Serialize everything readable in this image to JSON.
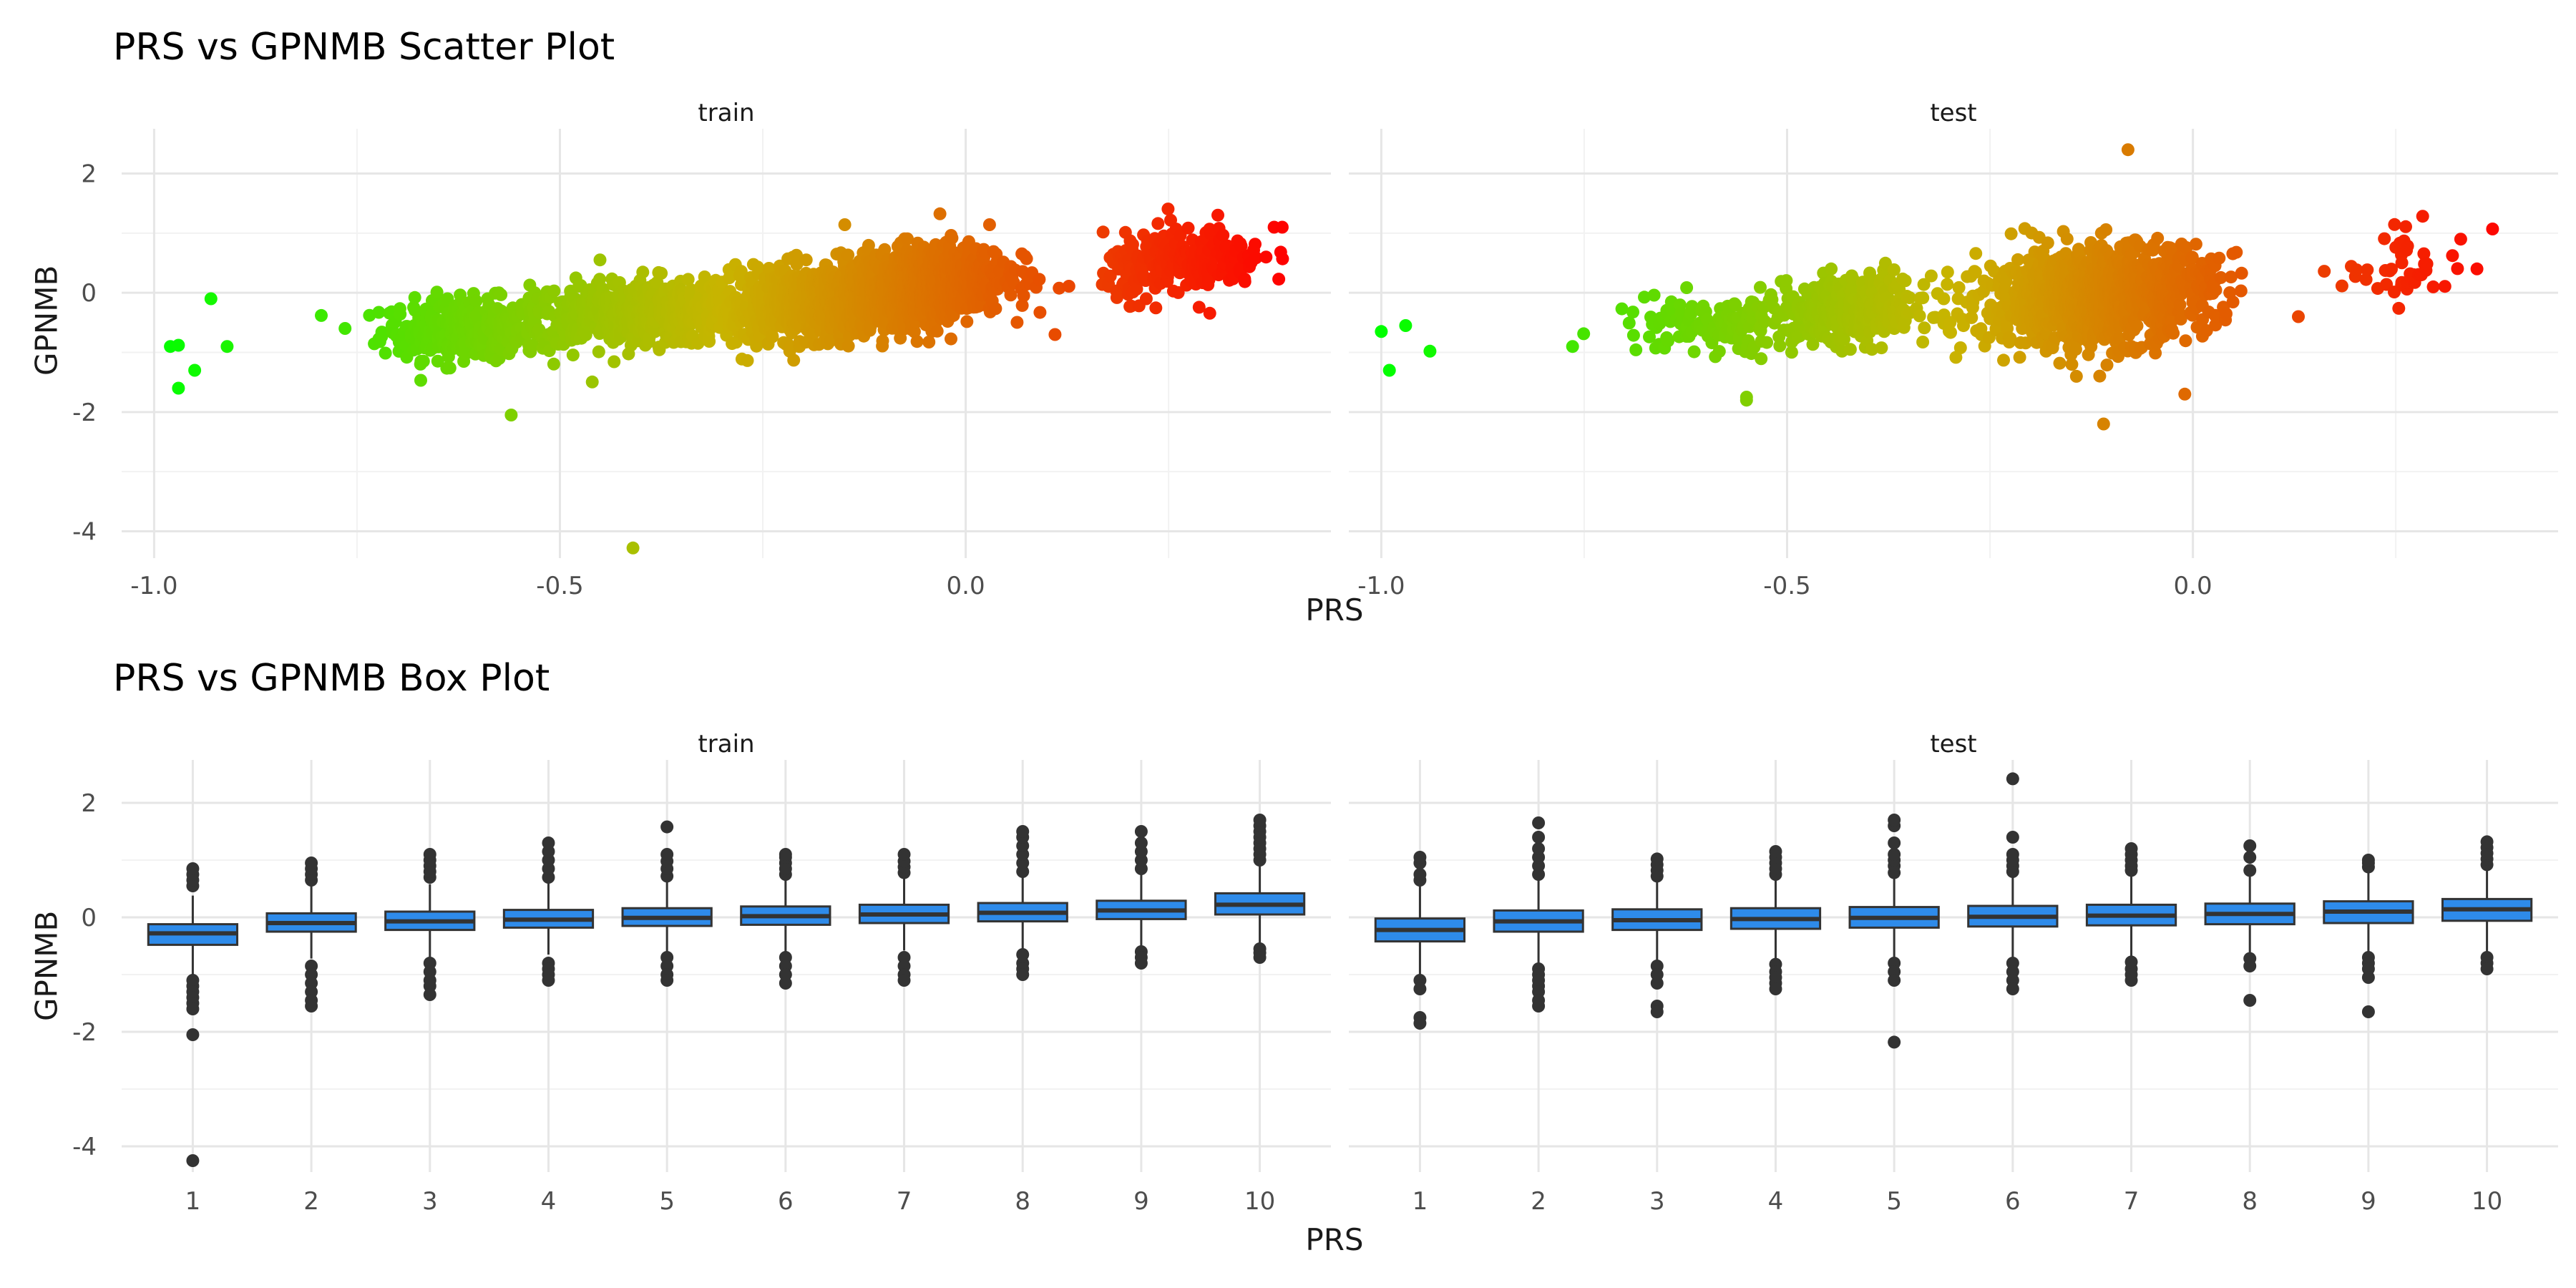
{
  "chart_data": [
    {
      "type": "scatter",
      "title": "PRS vs GPNMB Scatter Plot",
      "xlabel": "PRS",
      "ylabel": "GPNMB",
      "facets": [
        "train",
        "test"
      ],
      "x_ticks": [
        "-1.0",
        "-0.5",
        "0.0"
      ],
      "y_ticks": [
        "2",
        "0",
        "-2",
        "-4"
      ],
      "xlim": [
        -1.04,
        0.45
      ],
      "ylim": [
        -4.45,
        2.75
      ],
      "grid": true,
      "color_scale": {
        "low": "#00ff00",
        "mid": "#c8b400",
        "high": "#ff0000"
      },
      "clusters": {
        "train": [
          {
            "x_mean": -0.62,
            "x_sd": 0.05,
            "y_mean": -0.6,
            "y_sd": 0.25,
            "n": 320,
            "slope": 0.4
          },
          {
            "x_mean": -0.42,
            "x_sd": 0.07,
            "y_mean": -0.35,
            "y_sd": 0.28,
            "n": 520,
            "slope": 0.5
          },
          {
            "x_mean": -0.18,
            "x_sd": 0.07,
            "y_mean": -0.15,
            "y_sd": 0.3,
            "n": 900,
            "slope": 1.2
          },
          {
            "x_mean": -0.05,
            "x_sd": 0.05,
            "y_mean": 0.15,
            "y_sd": 0.32,
            "n": 900,
            "slope": 1.5
          },
          {
            "x_mean": 0.27,
            "x_sd": 0.05,
            "y_mean": 0.5,
            "y_sd": 0.28,
            "n": 240,
            "slope": 1.0
          }
        ],
        "test": [
          {
            "x_mean": -0.6,
            "x_sd": 0.06,
            "y_mean": -0.55,
            "y_sd": 0.25,
            "n": 120,
            "slope": 0.4
          },
          {
            "x_mean": -0.42,
            "x_sd": 0.05,
            "y_mean": -0.3,
            "y_sd": 0.28,
            "n": 360,
            "slope": 0.5
          },
          {
            "x_mean": -0.12,
            "x_sd": 0.07,
            "y_mean": -0.05,
            "y_sd": 0.4,
            "n": 1100,
            "slope": 1.0
          },
          {
            "x_mean": 0.27,
            "x_sd": 0.04,
            "y_mean": 0.45,
            "y_sd": 0.3,
            "n": 45,
            "slope": 1.0
          }
        ]
      },
      "points": {
        "train": [
          {
            "x": -0.98,
            "y": -0.9
          },
          {
            "x": -0.97,
            "y": -0.88
          },
          {
            "x": -0.97,
            "y": -1.6
          },
          {
            "x": -0.93,
            "y": -0.1
          },
          {
            "x": -0.95,
            "y": -1.3
          },
          {
            "x": -0.91,
            "y": -0.9
          },
          {
            "x": -0.56,
            "y": -2.05
          },
          {
            "x": -0.41,
            "y": -4.28
          },
          {
            "x": 0.39,
            "y": 1.1
          },
          {
            "x": 0.38,
            "y": 1.1
          },
          {
            "x": 0.37,
            "y": 0.6
          },
          {
            "x": 0.11,
            "y": -0.7
          }
        ],
        "test": [
          {
            "x": -1.0,
            "y": -0.65
          },
          {
            "x": -0.99,
            "y": -1.3
          },
          {
            "x": -0.97,
            "y": -0.55
          },
          {
            "x": -0.94,
            "y": -0.98
          },
          {
            "x": -0.55,
            "y": -1.8
          },
          {
            "x": -0.55,
            "y": -1.75
          },
          {
            "x": -0.08,
            "y": 2.4
          },
          {
            "x": -0.11,
            "y": -2.2
          },
          {
            "x": -0.01,
            "y": -1.7
          },
          {
            "x": 0.35,
            "y": 0.4
          },
          {
            "x": 0.33,
            "y": 0.9
          },
          {
            "x": 0.13,
            "y": -0.4
          }
        ]
      }
    },
    {
      "type": "box",
      "title": "PRS vs GPNMB Box Plot",
      "xlabel": "PRS",
      "ylabel": "GPNMB",
      "facets": [
        "train",
        "test"
      ],
      "categories": [
        "1",
        "2",
        "3",
        "4",
        "5",
        "6",
        "7",
        "8",
        "9",
        "10"
      ],
      "y_ticks": [
        "2",
        "0",
        "-2",
        "-4"
      ],
      "ylim": [
        -4.45,
        2.75
      ],
      "box_color": "#2e8bea",
      "series": {
        "train": [
          {
            "q1": -0.48,
            "median": -0.28,
            "q3": -0.12,
            "wlo": -1.0,
            "whi": 0.38,
            "outliers_lo": [
              -1.1,
              -1.2,
              -1.3,
              -1.4,
              -1.5,
              -1.6,
              -2.05,
              -4.25
            ],
            "outliers_hi": [
              0.55,
              0.65,
              0.75,
              0.85
            ]
          },
          {
            "q1": -0.25,
            "median": -0.1,
            "q3": 0.07,
            "wlo": -0.72,
            "whi": 0.55,
            "outliers_lo": [
              -0.85,
              -1.0,
              -1.15,
              -1.3,
              -1.45,
              -1.55
            ],
            "outliers_hi": [
              0.65,
              0.75,
              0.85,
              0.95
            ]
          },
          {
            "q1": -0.22,
            "median": -0.07,
            "q3": 0.1,
            "wlo": -0.7,
            "whi": 0.58,
            "outliers_lo": [
              -0.8,
              -0.95,
              -1.1,
              -1.2,
              -1.35
            ],
            "outliers_hi": [
              0.7,
              0.8,
              0.9,
              1.0,
              1.1
            ]
          },
          {
            "q1": -0.18,
            "median": -0.04,
            "q3": 0.13,
            "wlo": -0.65,
            "whi": 0.6,
            "outliers_lo": [
              -0.8,
              -0.9,
              -1.0,
              -1.1
            ],
            "outliers_hi": [
              0.7,
              0.85,
              1.0,
              1.15,
              1.3
            ]
          },
          {
            "q1": -0.15,
            "median": -0.01,
            "q3": 0.16,
            "wlo": -0.6,
            "whi": 0.62,
            "outliers_lo": [
              -0.7,
              -0.85,
              -1.0,
              -1.1
            ],
            "outliers_hi": [
              0.72,
              0.85,
              0.98,
              1.1,
              1.58
            ]
          },
          {
            "q1": -0.13,
            "median": 0.02,
            "q3": 0.19,
            "wlo": -0.6,
            "whi": 0.65,
            "outliers_lo": [
              -0.7,
              -0.85,
              -1.0,
              -1.15
            ],
            "outliers_hi": [
              0.75,
              0.85,
              0.95,
              1.05,
              1.1
            ]
          },
          {
            "q1": -0.1,
            "median": 0.05,
            "q3": 0.22,
            "wlo": -0.58,
            "whi": 0.68,
            "outliers_lo": [
              -0.7,
              -0.85,
              -1.0,
              -1.1
            ],
            "outliers_hi": [
              0.78,
              0.88,
              0.98,
              1.1
            ]
          },
          {
            "q1": -0.07,
            "median": 0.08,
            "q3": 0.25,
            "wlo": -0.55,
            "whi": 0.7,
            "outliers_lo": [
              -0.65,
              -0.8,
              -0.9,
              -1.0
            ],
            "outliers_hi": [
              0.8,
              0.95,
              1.1,
              1.25,
              1.4,
              1.5
            ]
          },
          {
            "q1": -0.03,
            "median": 0.12,
            "q3": 0.29,
            "wlo": -0.5,
            "whi": 0.75,
            "outliers_lo": [
              -0.6,
              -0.7,
              -0.8
            ],
            "outliers_hi": [
              0.85,
              1.0,
              1.15,
              1.3,
              1.5
            ]
          },
          {
            "q1": 0.05,
            "median": 0.22,
            "q3": 0.42,
            "wlo": -0.45,
            "whi": 0.9,
            "outliers_lo": [
              -0.55,
              -0.62,
              -0.7
            ],
            "outliers_hi": [
              1.0,
              1.1,
              1.2,
              1.3,
              1.4,
              1.5,
              1.6,
              1.7
            ]
          }
        ],
        "test": [
          {
            "q1": -0.42,
            "median": -0.22,
            "q3": -0.02,
            "wlo": -1.0,
            "whi": 0.55,
            "outliers_lo": [
              -1.1,
              -1.25,
              -1.75,
              -1.85
            ],
            "outliers_hi": [
              0.65,
              0.75,
              0.95,
              1.05
            ]
          },
          {
            "q1": -0.25,
            "median": -0.07,
            "q3": 0.12,
            "wlo": -0.8,
            "whi": 0.65,
            "outliers_lo": [
              -0.9,
              -1.0,
              -1.1,
              -1.2,
              -1.3,
              -1.45,
              -1.55
            ],
            "outliers_hi": [
              0.75,
              0.9,
              1.05,
              1.2,
              1.4,
              1.65
            ]
          },
          {
            "q1": -0.22,
            "median": -0.05,
            "q3": 0.14,
            "wlo": -0.75,
            "whi": 0.62,
            "outliers_lo": [
              -0.85,
              -1.0,
              -1.15,
              -1.55,
              -1.65
            ],
            "outliers_hi": [
              0.72,
              0.82,
              0.92,
              1.02
            ]
          },
          {
            "q1": -0.2,
            "median": -0.03,
            "q3": 0.16,
            "wlo": -0.72,
            "whi": 0.65,
            "outliers_lo": [
              -0.82,
              -0.95,
              -1.05,
              -1.15,
              -1.25
            ],
            "outliers_hi": [
              0.75,
              0.85,
              0.95,
              1.05,
              1.15
            ]
          },
          {
            "q1": -0.18,
            "median": -0.01,
            "q3": 0.18,
            "wlo": -0.7,
            "whi": 0.68,
            "outliers_lo": [
              -0.8,
              -0.95,
              -1.1,
              -2.18
            ],
            "outliers_hi": [
              0.78,
              0.9,
              1.0,
              1.1,
              1.3,
              1.6,
              1.7
            ]
          },
          {
            "q1": -0.16,
            "median": 0.01,
            "q3": 0.2,
            "wlo": -0.7,
            "whi": 0.7,
            "outliers_lo": [
              -0.8,
              -0.95,
              -1.1,
              -1.25
            ],
            "outliers_hi": [
              0.8,
              0.9,
              1.0,
              1.1,
              1.4,
              2.42
            ]
          },
          {
            "q1": -0.14,
            "median": 0.03,
            "q3": 0.22,
            "wlo": -0.68,
            "whi": 0.72,
            "outliers_lo": [
              -0.78,
              -0.9,
              -1.0,
              -1.1
            ],
            "outliers_hi": [
              0.82,
              0.9,
              1.0,
              1.1,
              1.2
            ]
          },
          {
            "q1": -0.12,
            "median": 0.06,
            "q3": 0.24,
            "wlo": -0.62,
            "whi": 0.72,
            "outliers_lo": [
              -0.72,
              -0.85,
              -1.45
            ],
            "outliers_hi": [
              0.82,
              1.05,
              1.25
            ]
          },
          {
            "q1": -0.1,
            "median": 0.1,
            "q3": 0.28,
            "wlo": -0.6,
            "whi": 0.78,
            "outliers_lo": [
              -0.7,
              -0.8,
              -0.9,
              -1.05,
              -1.65
            ],
            "outliers_hi": [
              0.88,
              0.95,
              1.0
            ]
          },
          {
            "q1": -0.06,
            "median": 0.14,
            "q3": 0.32,
            "wlo": -0.6,
            "whi": 0.82,
            "outliers_lo": [
              -0.7,
              -0.8,
              -0.9
            ],
            "outliers_hi": [
              0.92,
              1.02,
              1.12,
              1.22,
              1.32
            ]
          }
        ]
      }
    }
  ]
}
